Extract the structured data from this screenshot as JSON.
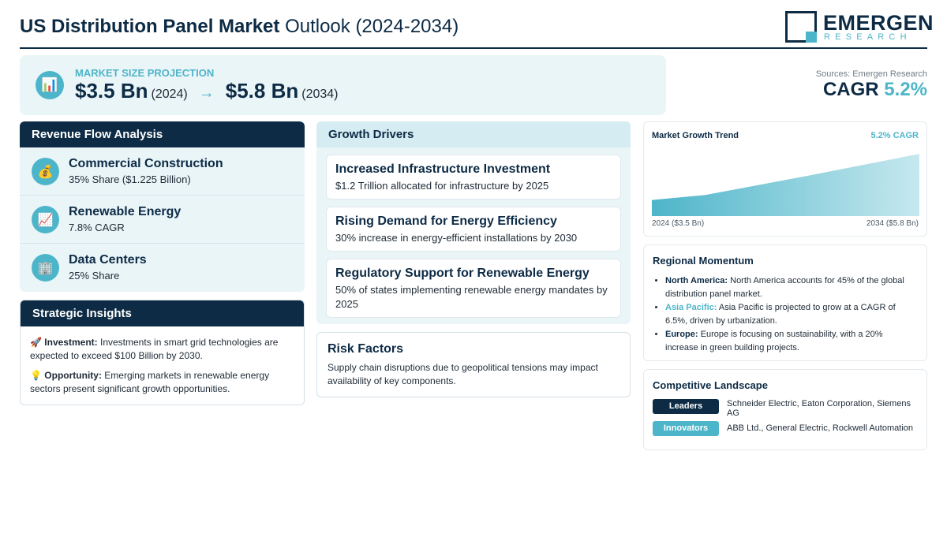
{
  "header": {
    "title_bold": "US Distribution Panel Market",
    "title_light": "Outlook (2024-2034)",
    "logo_word": "EMERGEN",
    "logo_sub": "RESEARCH"
  },
  "projection": {
    "label": "MARKET SIZE PROJECTION",
    "icon": "bar-chart-icon",
    "icon_glyph": "📊",
    "start_value": "$3.5 Bn",
    "start_year": "(2024)",
    "arrow": "→",
    "end_value": "$5.8 Bn",
    "end_year": "(2034)"
  },
  "sources": "Sources: Emergen Research",
  "cagr": {
    "label": "CAGR",
    "value": "5.2%"
  },
  "revenue_flow": {
    "title": "Revenue Flow Analysis",
    "items": [
      {
        "icon": "money-bag-icon",
        "glyph": "💰",
        "title": "Commercial Construction",
        "subtitle": "35% Share ($1.225 Billion)"
      },
      {
        "icon": "chart-up-icon",
        "glyph": "📈",
        "title": "Renewable Energy",
        "subtitle": "7.8% CAGR"
      },
      {
        "icon": "building-icon",
        "glyph": "🏢",
        "title": "Data Centers",
        "subtitle": "25% Share"
      }
    ]
  },
  "strategic": {
    "title": "Strategic Insights",
    "items": [
      {
        "glyph": "🚀",
        "label": "Investment:",
        "text": "Investments in smart grid technologies are expected to exceed $100 Billion by 2030."
      },
      {
        "glyph": "💡",
        "label": "Opportunity:",
        "text": "Emerging markets in renewable energy sectors present significant growth opportunities."
      }
    ]
  },
  "drivers": {
    "title": "Growth Drivers",
    "items": [
      {
        "title": "Increased Infrastructure Investment",
        "text": "$1.2 Trillion allocated for infrastructure by 2025"
      },
      {
        "title": "Rising Demand for Energy Efficiency",
        "text": "30% increase in energy-efficient installations by 2030"
      },
      {
        "title": "Regulatory Support for Renewable Energy",
        "text": "50% of states implementing renewable energy mandates by 2025"
      }
    ]
  },
  "risk": {
    "title": "Risk Factors",
    "text": "Supply chain disruptions due to geopolitical tensions may impact availability of key components."
  },
  "trend": {
    "title": "Market Growth Trend",
    "cagr_label": "5.2% CAGR",
    "start_label": "2024 ($3.5 Bn)",
    "end_label": "2034 ($5.8 Bn)"
  },
  "chart_data": {
    "type": "area",
    "x": [
      2024,
      2026,
      2030,
      2034
    ],
    "values": [
      3.5,
      3.75,
      4.75,
      5.8
    ],
    "ylim": [
      2.7,
      6.0
    ],
    "title": "Market Growth Trend",
    "xlabel": "",
    "ylabel": "",
    "grid": false,
    "legend": "none"
  },
  "regional": {
    "title": "Regional Momentum",
    "items": [
      {
        "label": "North America:",
        "text": "North America accounts for 45% of the global distribution panel market."
      },
      {
        "label": "Asia Pacific:",
        "text": "Asia Pacific is projected to grow at a CAGR of 6.5%, driven by urbanization."
      },
      {
        "label": "Europe:",
        "text": "Europe is focusing on sustainability, with a 20% increase in green building projects."
      }
    ]
  },
  "competitive": {
    "title": "Competitive Landscape",
    "rows": [
      {
        "tag": "Leaders",
        "names": "Schneider Electric, Eaton Corporation, Siemens AG"
      },
      {
        "tag": "Innovators",
        "names": "ABB Ltd., General Electric, Rockwell Automation"
      }
    ]
  },
  "colors": {
    "navy": "#0d2b45",
    "accent": "#4db5c9",
    "panel_bg": "#eaf5f8"
  }
}
